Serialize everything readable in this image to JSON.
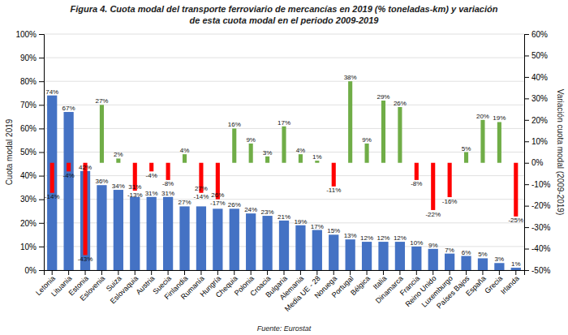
{
  "chart_data": {
    "type": "bar",
    "title": "Figura 4. Cuota modal del transporte ferroviario de mercancías en 2019 (% toneladas-km) y variación",
    "subtitle": "de esta cuota modal en el periodo 2009-2019",
    "annotations": [
      "Fuente: Eurostat"
    ],
    "ylabel": "Cuota modal 2019",
    "y2label": "Variación cuota modal (2009-2019)",
    "categories": [
      "Letonia",
      "Lituania",
      "Estonia",
      "Eslovenia",
      "Suiza",
      "Eslovaquia",
      "Austria",
      "Suecia",
      "Finlandia",
      "Rumanía",
      "Hungría",
      "Chequia",
      "Polonia",
      "Croacia",
      "Bulgaria",
      "Alemania",
      "Media UE - 28",
      "Noruega",
      "Portugal",
      "Bélgica",
      "Italia",
      "Dinamarca",
      "Francia",
      "Reino Unido",
      "Luxemburgo",
      "Países Bajos",
      "España",
      "Grecia",
      "Irlanda"
    ],
    "series": [
      {
        "color": "#4472C4",
        "values": [
          74,
          67,
          42,
          36,
          34,
          31,
          31,
          31,
          27,
          27,
          26,
          26,
          24,
          23,
          21,
          19,
          17,
          15,
          13,
          12,
          12,
          12,
          10,
          9,
          7,
          6,
          5,
          3,
          1
        ],
        "value_labels": [
          "74%",
          "67%",
          "42%",
          "36%",
          "34%",
          "31%",
          "31%",
          "31%",
          "27%",
          "27%",
          "26%",
          "26%",
          "24%",
          "23%",
          "21%",
          "19%",
          "17%",
          "15%",
          "13%",
          "12%",
          "12%",
          "12%",
          "10%",
          "9%",
          "7%",
          "6%",
          "5%",
          "3%",
          "1%"
        ]
      },
      {
        "axis": "y2",
        "colors": [
          "#FF0000",
          "#FF0000",
          "#FF0000",
          "#70AD47",
          "#70AD47",
          "#FF0000",
          "#FF0000",
          "#FF0000",
          "#70AD47",
          "#FF0000",
          "#FF0000",
          "#70AD47",
          "#70AD47",
          "#70AD47",
          "#70AD47",
          "#70AD47",
          "#70AD47",
          "#FF0000",
          "#70AD47",
          "#70AD47",
          "#70AD47",
          "#70AD47",
          "#FF0000",
          "#FF0000",
          "#FF0000",
          "#70AD47",
          "#70AD47",
          "#70AD47",
          "#FF0000"
        ],
        "values": [
          -14,
          -4,
          -43,
          27,
          2,
          -13,
          -4,
          -8,
          4,
          -14,
          -17,
          16,
          9,
          3,
          17,
          4,
          1,
          -11,
          38,
          9,
          29,
          26,
          -8,
          -22,
          -16,
          5,
          20,
          19,
          -25
        ],
        "value_labels": [
          "-14%",
          "-4%",
          "-43%",
          "27%",
          "2%",
          "-13%",
          "-4%",
          "-8%",
          "4%",
          "-14%",
          "-17%",
          "16%",
          "9%",
          "3%",
          "17%",
          "4%",
          "1%",
          "-11%",
          "38%",
          "9%",
          "29%",
          "26%",
          "-8%",
          "-22%",
          "-16%",
          "5%",
          "20%",
          "19%",
          "-25%"
        ]
      }
    ],
    "ylim": [
      0,
      100
    ],
    "yticks": [
      {
        "value": 0,
        "label": "0%"
      },
      {
        "value": 10,
        "label": "10%"
      },
      {
        "value": 20,
        "label": "20%"
      },
      {
        "value": 30,
        "label": "30%"
      },
      {
        "value": 40,
        "label": "40%"
      },
      {
        "value": 50,
        "label": "50%"
      },
      {
        "value": 60,
        "label": "60%"
      },
      {
        "value": 70,
        "label": "70%"
      },
      {
        "value": 80,
        "label": "80%"
      },
      {
        "value": 90,
        "label": "90%"
      },
      {
        "value": 100,
        "label": "100%"
      }
    ],
    "y2lim": [
      -50,
      60
    ],
    "y2ticks": [
      {
        "value": -50,
        "label": "-50%"
      },
      {
        "value": -40,
        "label": "-40%"
      },
      {
        "value": -30,
        "label": "-30%"
      },
      {
        "value": -20,
        "label": "-20%"
      },
      {
        "value": -10,
        "label": "-10%"
      },
      {
        "value": 0,
        "label": "0%"
      },
      {
        "value": 10,
        "label": "10%"
      },
      {
        "value": 20,
        "label": "20%"
      },
      {
        "value": 30,
        "label": "30%"
      },
      {
        "value": 40,
        "label": "40%"
      },
      {
        "value": 50,
        "label": "50%"
      },
      {
        "value": 60,
        "label": "60%"
      }
    ],
    "grid": true,
    "data_labels": true
  }
}
